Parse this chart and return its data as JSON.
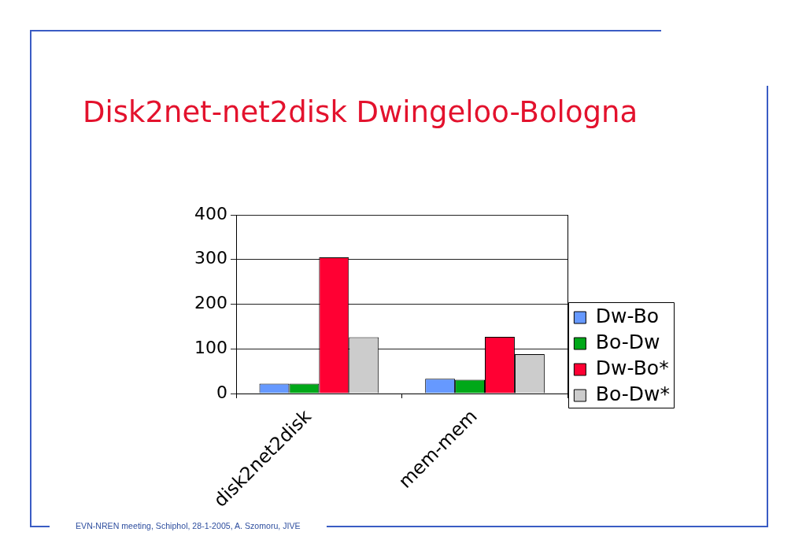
{
  "chart_data": {
    "type": "bar",
    "title": "Disk2net-net2disk Dwingeloo-Bologna",
    "categories": [
      "disk2net2disk",
      "mem-mem"
    ],
    "series": [
      {
        "name": "Dw-Bo",
        "color": "#6699ff",
        "values": [
          22,
          33
        ]
      },
      {
        "name": "Bo-Dw",
        "color": "#00a819",
        "values": [
          22,
          31
        ]
      },
      {
        "name": "Dw-Bo*",
        "color": "#ff0033",
        "values": [
          305,
          127
        ]
      },
      {
        "name": "Bo-Dw*",
        "color": "#cccccc",
        "values": [
          126,
          88
        ]
      }
    ],
    "ylim": [
      0,
      400
    ],
    "yticks": [
      0,
      100,
      200,
      300,
      400
    ],
    "grid": "y",
    "legend": "right",
    "annotations": [
      "EVN-NREN meeting, Schiphol, 28-1-2005, A. Szomoru, JIVE"
    ]
  }
}
